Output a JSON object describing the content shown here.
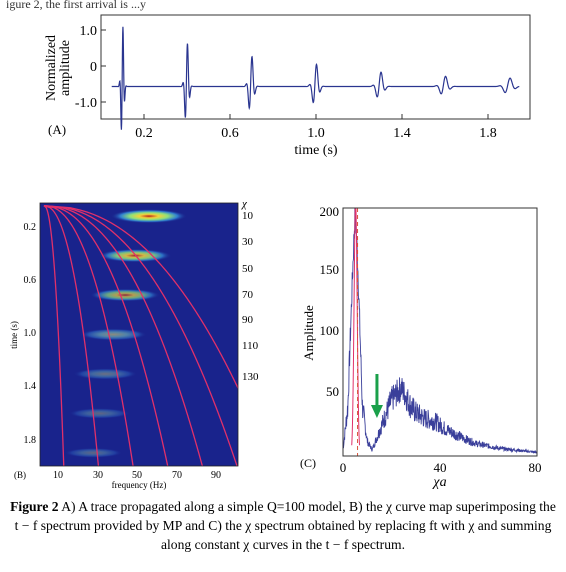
{
  "top_fragment": "igure 2, the first  arrival is ...y",
  "panel_a": {
    "panel_label": "(A)",
    "ylabel_line1": "Normalized",
    "ylabel_line2": "amplitude",
    "xlabel": "time (s)",
    "yticks": [
      "1.0",
      "0",
      "-1.0"
    ],
    "xticks": [
      "0.2",
      "0.6",
      "1.0",
      "1.4",
      "1.8"
    ]
  },
  "panel_b": {
    "panel_label": "(B)",
    "ylabel": "time (s)",
    "xlabel": "frequency (Hz)",
    "chi_symbol": "χ",
    "yticks": [
      "0.2",
      "0.6",
      "1.0",
      "1.4",
      "1.8"
    ],
    "xticks": [
      "10",
      "30",
      "50",
      "70",
      "90"
    ],
    "chi_labels": [
      "10",
      "30",
      "50",
      "70",
      "90",
      "110",
      "130"
    ]
  },
  "panel_c": {
    "panel_label": "(C)",
    "ylabel": "Amplitude",
    "xlabel": "χa",
    "yticks": [
      "50",
      "100",
      "150",
      "200"
    ],
    "xticks": [
      "0",
      "40",
      "80"
    ]
  },
  "caption": {
    "bold": "Figure 2",
    "text": " A) A trace propagated along a simple Q=100 model, B) the χ curve map superimposing the t − f spectrum provided by MP and C) the χ spectrum obtained by replacing ft with χ and summing along constant χ curves in the t − f spectrum."
  },
  "colors": {
    "trace": "#2a3590",
    "curve": "#e0306a",
    "spectrum": "#3a3f9a",
    "dashed": "#d9533a",
    "arrow": "#1aa04a",
    "tf_bg": "#19238c"
  },
  "chart_data": [
    {
      "type": "line",
      "panel": "A",
      "xlabel": "time (s)",
      "ylabel": "Normalized amplitude",
      "xlim": [
        0.0,
        2.0
      ],
      "ylim": [
        -1.2,
        1.2
      ],
      "wavelets": [
        {
          "t": 0.1,
          "amp": 1.0
        },
        {
          "t": 0.4,
          "amp": 0.72
        },
        {
          "t": 0.7,
          "amp": 0.5
        },
        {
          "t": 1.0,
          "amp": 0.37
        },
        {
          "t": 1.3,
          "amp": 0.24
        },
        {
          "t": 1.6,
          "amp": 0.17
        },
        {
          "t": 1.9,
          "amp": 0.14
        }
      ],
      "baseline": -0.45
    },
    {
      "type": "heatmap",
      "panel": "B",
      "xlabel": "frequency (Hz)",
      "ylabel": "time (s)",
      "xlim": [
        0,
        100
      ],
      "ylim": [
        0.0,
        2.0
      ],
      "blobs": [
        {
          "t": 0.1,
          "f": 55,
          "intensity": 1.0
        },
        {
          "t": 0.4,
          "f": 48,
          "intensity": 0.85
        },
        {
          "t": 0.7,
          "f": 43,
          "intensity": 0.7
        },
        {
          "t": 1.0,
          "f": 37,
          "intensity": 0.55
        },
        {
          "t": 1.3,
          "f": 33,
          "intensity": 0.4
        },
        {
          "t": 1.6,
          "f": 30,
          "intensity": 0.3
        },
        {
          "t": 1.9,
          "f": 27,
          "intensity": 0.22
        }
      ],
      "chi_curves": [
        10,
        30,
        50,
        70,
        90,
        110,
        130
      ]
    },
    {
      "type": "line",
      "panel": "C",
      "xlabel": "χa",
      "ylabel": "Amplitude",
      "xlim": [
        0,
        80
      ],
      "ylim": [
        0,
        200
      ],
      "x": [
        0,
        2,
        4,
        5,
        6,
        8,
        10,
        12,
        14,
        16,
        18,
        20,
        22,
        24,
        26,
        28,
        30,
        34,
        38,
        42,
        46,
        50,
        55,
        60,
        65,
        70,
        75,
        80
      ],
      "y": [
        5,
        40,
        150,
        200,
        160,
        40,
        12,
        5,
        15,
        25,
        35,
        45,
        50,
        55,
        48,
        40,
        35,
        30,
        28,
        22,
        18,
        14,
        10,
        8,
        6,
        5,
        4,
        3
      ],
      "dashed_line_x": 6,
      "arrow_x": 14
    }
  ]
}
